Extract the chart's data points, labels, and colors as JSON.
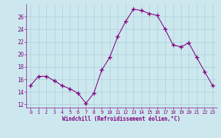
{
  "x": [
    0,
    1,
    2,
    3,
    4,
    5,
    6,
    7,
    8,
    9,
    10,
    11,
    12,
    13,
    14,
    15,
    16,
    17,
    18,
    19,
    20,
    21,
    22,
    23
  ],
  "y": [
    15.0,
    16.5,
    16.5,
    15.8,
    15.0,
    14.5,
    13.8,
    12.2,
    13.8,
    17.5,
    19.5,
    22.8,
    25.2,
    27.2,
    27.0,
    26.5,
    26.2,
    24.0,
    21.5,
    21.2,
    21.8,
    19.5,
    17.2,
    15.0
  ],
  "line_color": "#800080",
  "marker": "+",
  "marker_size": 4,
  "bg_color": "#cce8ee",
  "grid_color": "#aacdd6",
  "tick_color": "#800080",
  "xlabel": "Windchill (Refroidissement éolien,°C)",
  "ylim": [
    11.5,
    28.0
  ],
  "xlim": [
    -0.5,
    23.5
  ],
  "yticks": [
    12,
    14,
    16,
    18,
    20,
    22,
    24,
    26
  ],
  "xticks": [
    0,
    1,
    2,
    3,
    4,
    5,
    6,
    7,
    8,
    9,
    10,
    11,
    12,
    13,
    14,
    15,
    16,
    17,
    18,
    19,
    20,
    21,
    22,
    23
  ]
}
